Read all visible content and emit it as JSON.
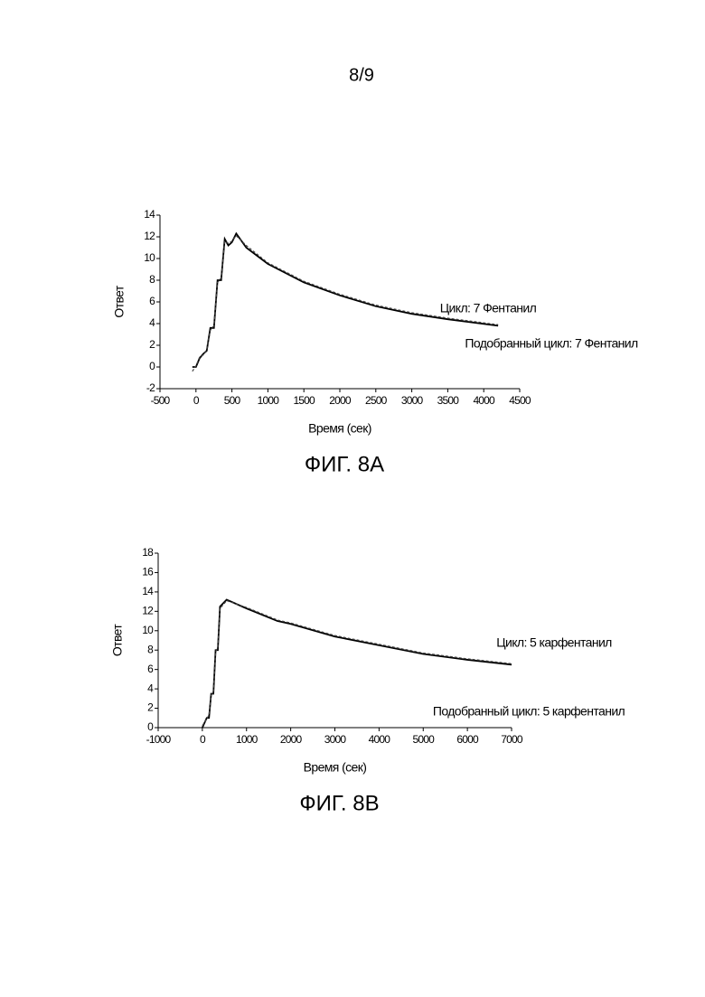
{
  "page_number": "8/9",
  "chart_data": [
    {
      "type": "line",
      "caption": "ФИГ. 8A",
      "xlabel": "Время (сек)",
      "ylabel": "Ответ",
      "x": [
        -50,
        0,
        50,
        100,
        150,
        200,
        250,
        300,
        350,
        400,
        450,
        500,
        560,
        700,
        1000,
        1500,
        2000,
        2500,
        3000,
        3500,
        4200
      ],
      "series": [
        {
          "name": "Цикл: 7 Фентанил",
          "color": "#000000",
          "dashed": false,
          "values": [
            0,
            0,
            0.8,
            1.2,
            1.5,
            3.6,
            3.6,
            8,
            8,
            11.8,
            11.2,
            11.5,
            12.3,
            11,
            9.5,
            7.8,
            6.6,
            5.6,
            4.9,
            4.4,
            3.8
          ]
        },
        {
          "name": "Подобранный цикл: 7 Фентанил",
          "color": "#444444",
          "dashed": true,
          "values": [
            -0.4,
            0.1,
            0.9,
            1.1,
            1.6,
            3.4,
            3.8,
            7.8,
            8.2,
            11.6,
            11.4,
            11.6,
            12.1,
            11.2,
            9.6,
            7.9,
            6.7,
            5.7,
            5.0,
            4.5,
            3.9
          ]
        }
      ],
      "xlim": [
        -500,
        4500
      ],
      "xticks": [
        -500,
        0,
        500,
        1000,
        1500,
        2000,
        2500,
        3000,
        3500,
        4000,
        4500
      ],
      "ylim": [
        -2,
        14
      ],
      "yticks": [
        -2,
        0,
        2,
        4,
        6,
        8,
        10,
        12,
        14
      ]
    },
    {
      "type": "line",
      "caption": "ФИГ. 8B",
      "xlabel": "Время (сек)",
      "ylabel": "Ответ",
      "x": [
        0,
        100,
        150,
        200,
        250,
        300,
        350,
        400,
        550,
        1000,
        1700,
        2000,
        3000,
        4000,
        5000,
        6000,
        7000
      ],
      "series": [
        {
          "name": "Цикл: 5 карфентанил",
          "color": "#000000",
          "dashed": false,
          "values": [
            0,
            1,
            1,
            3.5,
            3.5,
            8,
            8,
            12.5,
            13.2,
            12.3,
            11,
            10.7,
            9.4,
            8.5,
            7.6,
            7,
            6.5
          ]
        },
        {
          "name": "Подобранный цикл: 5 карфентанил",
          "color": "#444444",
          "dashed": true,
          "values": [
            0.2,
            0.9,
            1.3,
            3.3,
            3.8,
            7.8,
            8.3,
            12.3,
            13.1,
            12.4,
            11.1,
            10.8,
            9.5,
            8.6,
            7.7,
            7.1,
            6.6
          ]
        }
      ],
      "xlim": [
        -1000,
        7000
      ],
      "xticks": [
        -1000,
        0,
        1000,
        2000,
        3000,
        4000,
        5000,
        6000,
        7000
      ],
      "ylim": [
        0,
        18
      ],
      "yticks": [
        0,
        2,
        4,
        6,
        8,
        10,
        12,
        14,
        16,
        18
      ]
    }
  ]
}
